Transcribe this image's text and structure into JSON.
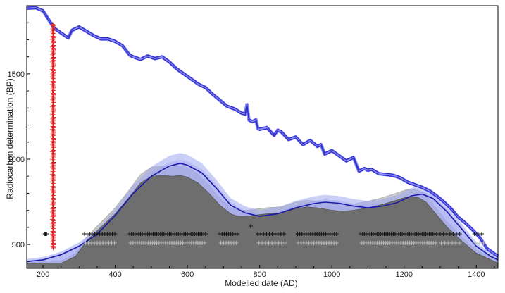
{
  "chart_data": {
    "type": "area",
    "title": "",
    "xlabel": "Modelled date (AD)",
    "ylabel": "Radiocarbon determination (BP)",
    "xlim": [
      155,
      1460
    ],
    "ylim": [
      360,
      1900
    ],
    "xticks": [
      200,
      400,
      600,
      800,
      1000,
      1200,
      1400
    ],
    "yticks": [
      500,
      1000,
      1500
    ],
    "grid": false,
    "legend": "none",
    "colors": {
      "calibration_curve": "#2b2bd6",
      "calibration_band": "#8a8ae8",
      "spd_fill": "#6e6e6e",
      "spd_light": "#c8c8c8",
      "model_envelope": "#9fa7f0",
      "model_line": "#1a1aa8",
      "measured_dates": "#e02020",
      "rug_black": "#111111",
      "rug_grey": "#b8b8b8"
    },
    "series": [
      {
        "role": "calibration curve",
        "x": [
          155,
          180,
          200,
          215,
          230,
          250,
          270,
          280,
          300,
          320,
          340,
          360,
          380,
          400,
          420,
          440,
          450,
          470,
          490,
          510,
          530,
          550,
          570,
          590,
          610,
          630,
          650,
          670,
          690,
          710,
          730,
          750,
          760,
          765,
          770,
          780,
          790,
          795,
          800,
          820,
          840,
          850,
          860,
          880,
          900,
          920,
          940,
          960,
          970,
          980,
          1000,
          1020,
          1040,
          1060,
          1075,
          1090,
          1100,
          1110,
          1130,
          1150,
          1170,
          1190,
          1210,
          1230,
          1250,
          1270,
          1290,
          1310,
          1330,
          1350,
          1370,
          1390,
          1410,
          1430,
          1460
        ],
        "values": [
          1885,
          1888,
          1870,
          1820,
          1770,
          1740,
          1710,
          1755,
          1775,
          1750,
          1725,
          1705,
          1705,
          1690,
          1665,
          1610,
          1600,
          1585,
          1605,
          1590,
          1600,
          1570,
          1530,
          1500,
          1470,
          1440,
          1420,
          1380,
          1345,
          1310,
          1295,
          1270,
          1265,
          1320,
          1230,
          1220,
          1230,
          1180,
          1175,
          1185,
          1140,
          1170,
          1160,
          1115,
          1130,
          1085,
          1110,
          1075,
          1085,
          1030,
          1050,
          1020,
          990,
          1010,
          930,
          945,
          935,
          940,
          915,
          910,
          905,
          890,
          865,
          850,
          835,
          815,
          785,
          750,
          710,
          660,
          625,
          585,
          540,
          475,
          430
        ]
      },
      {
        "role": "summed probability distribution",
        "x": [
          155,
          200,
          250,
          290,
          320,
          350,
          400,
          440,
          470,
          500,
          530,
          560,
          580,
          600,
          630,
          660,
          690,
          720,
          740,
          760,
          780,
          800,
          820,
          860,
          900,
          930,
          960,
          1000,
          1030,
          1060,
          1100,
          1140,
          1180,
          1210,
          1240,
          1260,
          1280,
          1320,
          1360,
          1400,
          1460
        ],
        "values": [
          390,
          390,
          390,
          430,
          520,
          580,
          680,
          780,
          860,
          900,
          905,
          900,
          905,
          895,
          860,
          800,
          730,
          680,
          665,
          665,
          670,
          675,
          680,
          685,
          710,
          720,
          715,
          700,
          695,
          700,
          715,
          735,
          760,
          780,
          775,
          750,
          700,
          600,
          520,
          450,
          390
        ]
      },
      {
        "role": "modelled curve",
        "x": [
          155,
          200,
          250,
          300,
          350,
          400,
          450,
          500,
          550,
          580,
          600,
          640,
          680,
          720,
          760,
          800,
          850,
          900,
          950,
          980,
          1020,
          1060,
          1100,
          1140,
          1180,
          1220,
          1250,
          1280,
          1320,
          1360,
          1400,
          1440,
          1460
        ],
        "values": [
          400,
          410,
          440,
          490,
          560,
          670,
          800,
          900,
          960,
          975,
          965,
          920,
          830,
          730,
          685,
          665,
          680,
          715,
          740,
          748,
          742,
          725,
          715,
          725,
          745,
          785,
          795,
          770,
          690,
          590,
          490,
          430,
          410
        ]
      },
      {
        "role": "measured dates",
        "x": 228,
        "min": 480,
        "max": 1790
      }
    ]
  }
}
